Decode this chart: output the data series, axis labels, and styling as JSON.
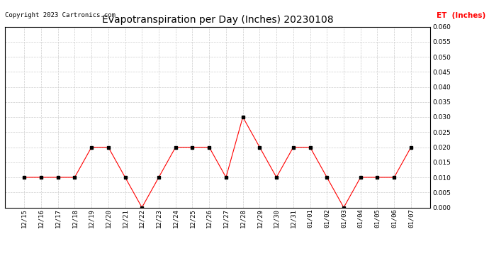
{
  "title": "Evapotranspiration per Day (Inches) 20230108",
  "copyright": "Copyright 2023 Cartronics.com",
  "legend_label": "ET  (Inches)",
  "dates": [
    "12/15",
    "12/16",
    "12/17",
    "12/18",
    "12/19",
    "12/20",
    "12/21",
    "12/22",
    "12/23",
    "12/24",
    "12/25",
    "12/26",
    "12/27",
    "12/28",
    "12/29",
    "12/30",
    "12/31",
    "01/01",
    "01/02",
    "01/03",
    "01/04",
    "01/05",
    "01/06",
    "01/07"
  ],
  "values": [
    0.01,
    0.01,
    0.01,
    0.01,
    0.02,
    0.02,
    0.01,
    0.0,
    0.01,
    0.02,
    0.02,
    0.02,
    0.01,
    0.03,
    0.02,
    0.01,
    0.02,
    0.02,
    0.01,
    0.0,
    0.01,
    0.01,
    0.01,
    0.02
  ],
  "line_color": "red",
  "marker_color": "black",
  "marker_style": "s",
  "marker_size": 2.5,
  "ylim": [
    0.0,
    0.06
  ],
  "yticks": [
    0.0,
    0.005,
    0.01,
    0.015,
    0.02,
    0.025,
    0.03,
    0.035,
    0.04,
    0.045,
    0.05,
    0.055,
    0.06
  ],
  "background_color": "#ffffff",
  "grid_color": "#cccccc",
  "title_fontsize": 10,
  "copyright_fontsize": 6.5,
  "legend_fontsize": 7.5,
  "tick_fontsize": 6.5
}
